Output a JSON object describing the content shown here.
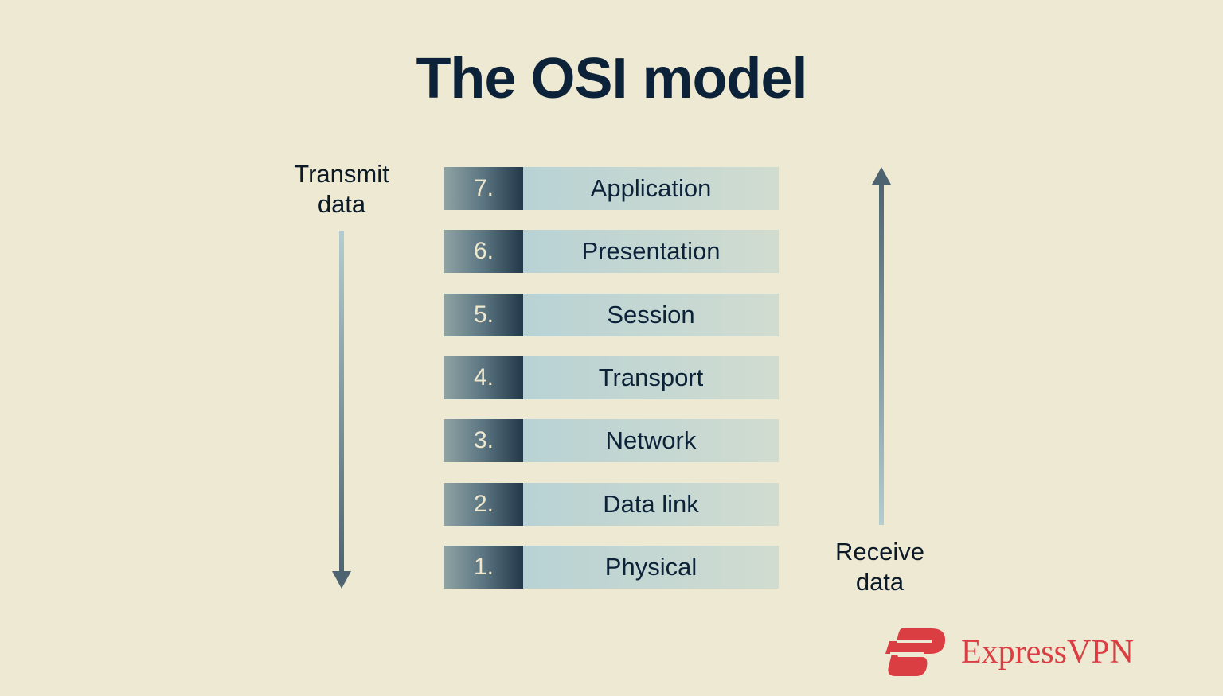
{
  "title": "The OSI model",
  "transmit_label": [
    "Transmit",
    "data"
  ],
  "receive_label": [
    "Receive",
    "data"
  ],
  "layers": [
    {
      "number": "7.",
      "name": "Application"
    },
    {
      "number": "6.",
      "name": "Presentation"
    },
    {
      "number": "5.",
      "name": "Session"
    },
    {
      "number": "4.",
      "name": "Transport"
    },
    {
      "number": "3.",
      "name": "Network"
    },
    {
      "number": "2.",
      "name": "Data link"
    },
    {
      "number": "1.",
      "name": "Physical"
    }
  ],
  "brand": {
    "name": "ExpressVPN",
    "color": "#da3d42"
  },
  "colors": {
    "background": "#eee9d2",
    "title": "#0b2238",
    "arrow": "#4d6470"
  }
}
